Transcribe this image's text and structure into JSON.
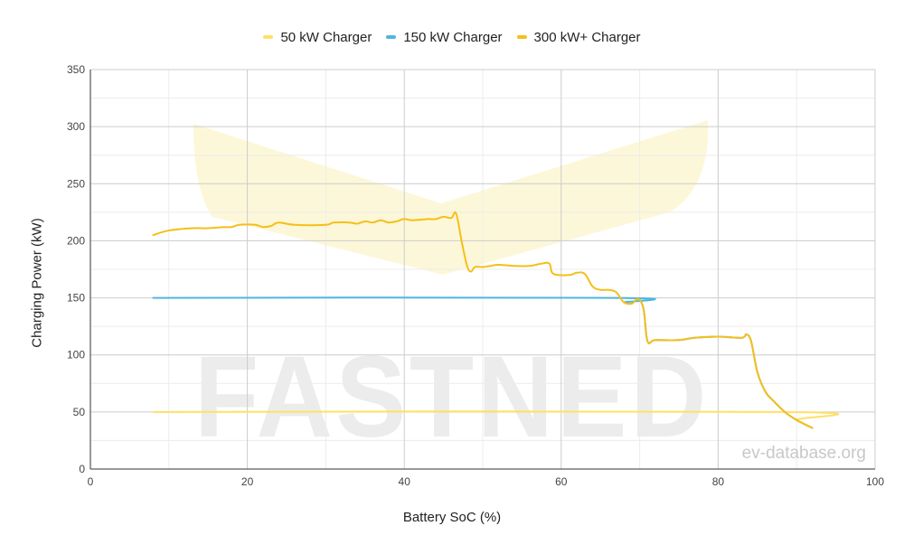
{
  "watermark": {
    "logo_text": "FASTNED",
    "site": "ev-database.org"
  },
  "chart_data": {
    "type": "line",
    "xlabel": "Battery SoC (%)",
    "ylabel": "Charging Power (kW)",
    "xlim": [
      0,
      100
    ],
    "ylim": [
      0,
      350
    ],
    "x_ticks": [
      0,
      20,
      40,
      60,
      80,
      100
    ],
    "y_ticks": [
      0,
      50,
      100,
      150,
      200,
      250,
      300,
      350
    ],
    "grid": true,
    "legend_position": "top",
    "series": [
      {
        "name": "50 kW Charger",
        "color": "#ffe066",
        "x": [
          8,
          88.5,
          90,
          92
        ],
        "y": [
          50,
          50,
          43,
          36
        ]
      },
      {
        "name": "150 kW Charger",
        "color": "#4fb6e0",
        "x": [
          8,
          67,
          68,
          69,
          69.8,
          70.5,
          71,
          72,
          75,
          77,
          80,
          83,
          83.6,
          84.2,
          85,
          86,
          87,
          88.5,
          90,
          92
        ],
        "y": [
          150,
          150,
          146,
          145,
          149,
          140,
          112,
          113,
          113,
          115,
          116,
          115,
          118,
          112,
          85,
          68,
          60,
          50,
          43,
          36
        ]
      },
      {
        "name": "300 kW+ Charger",
        "color": "#f5bf19",
        "x": [
          8,
          10,
          13,
          15,
          17,
          18,
          19,
          21,
          22,
          23,
          24,
          26,
          30,
          31,
          33,
          34,
          35,
          36,
          37,
          38,
          39,
          40,
          41,
          43,
          44,
          45,
          46,
          46.6,
          47.3,
          48,
          48.5,
          49,
          50,
          51,
          52,
          54,
          56,
          57.5,
          58.5,
          59,
          61,
          62,
          63,
          64,
          65,
          66,
          67,
          68,
          69,
          69.8,
          70.5,
          71,
          72,
          75,
          77,
          80,
          83,
          83.6,
          84.2,
          85,
          86,
          87,
          88.5,
          90,
          92
        ],
        "y": [
          205,
          209,
          211,
          211,
          212,
          212,
          214,
          214,
          212,
          213,
          216,
          214,
          214,
          216,
          216,
          215,
          217,
          216,
          218,
          216,
          217,
          219,
          218,
          219,
          219,
          221,
          220,
          224,
          200,
          178,
          173,
          177,
          177,
          178,
          179,
          178,
          178,
          180,
          180,
          171,
          170,
          172,
          171,
          160,
          157,
          157,
          155,
          146,
          145,
          149,
          140,
          112,
          113,
          113,
          115,
          116,
          115,
          118,
          112,
          85,
          68,
          60,
          50,
          43,
          36
        ]
      }
    ]
  }
}
